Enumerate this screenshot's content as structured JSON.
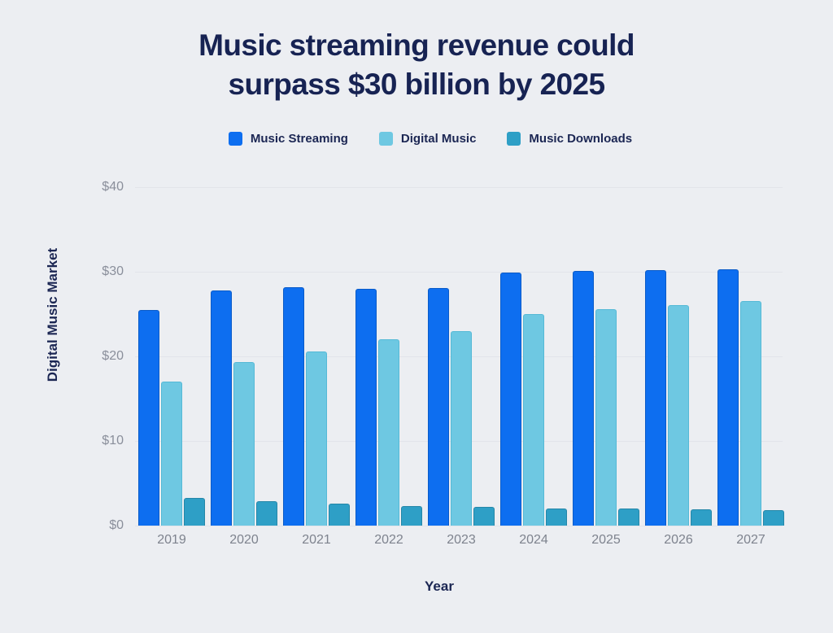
{
  "title": {
    "line1": "Music streaming revenue could",
    "line2": "surpass $30 billion by 2025"
  },
  "colors": {
    "background": "#ECEEF2",
    "title_text": "#172353",
    "axis_text": "#8A8F9B",
    "gridline": "#E2E4EA"
  },
  "chart_data": {
    "type": "bar",
    "title": "Music streaming revenue could surpass $30 billion by 2025",
    "xlabel": "Year",
    "ylabel": "Digital Music Market",
    "categories": [
      "2019",
      "2020",
      "2021",
      "2022",
      "2023",
      "2024",
      "2025",
      "2026",
      "2027"
    ],
    "series": [
      {
        "name": "Music Streaming",
        "color": "#0D6EF0",
        "border_color": "#0A5BC8",
        "values": [
          25.5,
          27.8,
          28.2,
          28.0,
          28.1,
          29.9,
          30.1,
          30.2,
          30.3
        ]
      },
      {
        "name": "Digital Music",
        "color": "#6EC8E2",
        "border_color": "#55B9D6",
        "values": [
          17.0,
          19.3,
          20.6,
          22.0,
          23.0,
          25.0,
          25.6,
          26.1,
          26.5
        ]
      },
      {
        "name": "Music Downloads",
        "color": "#2E9FC6",
        "border_color": "#2587A8",
        "values": [
          3.3,
          2.9,
          2.6,
          2.3,
          2.2,
          2.0,
          2.0,
          1.9,
          1.8
        ]
      }
    ],
    "ylim": [
      0,
      40
    ],
    "ytick_values": [
      0,
      10,
      20,
      30,
      40
    ],
    "ytick_labels": [
      "$0",
      "$10",
      "$20",
      "$30",
      "$40"
    ],
    "grid": true,
    "legend_position": "top"
  }
}
